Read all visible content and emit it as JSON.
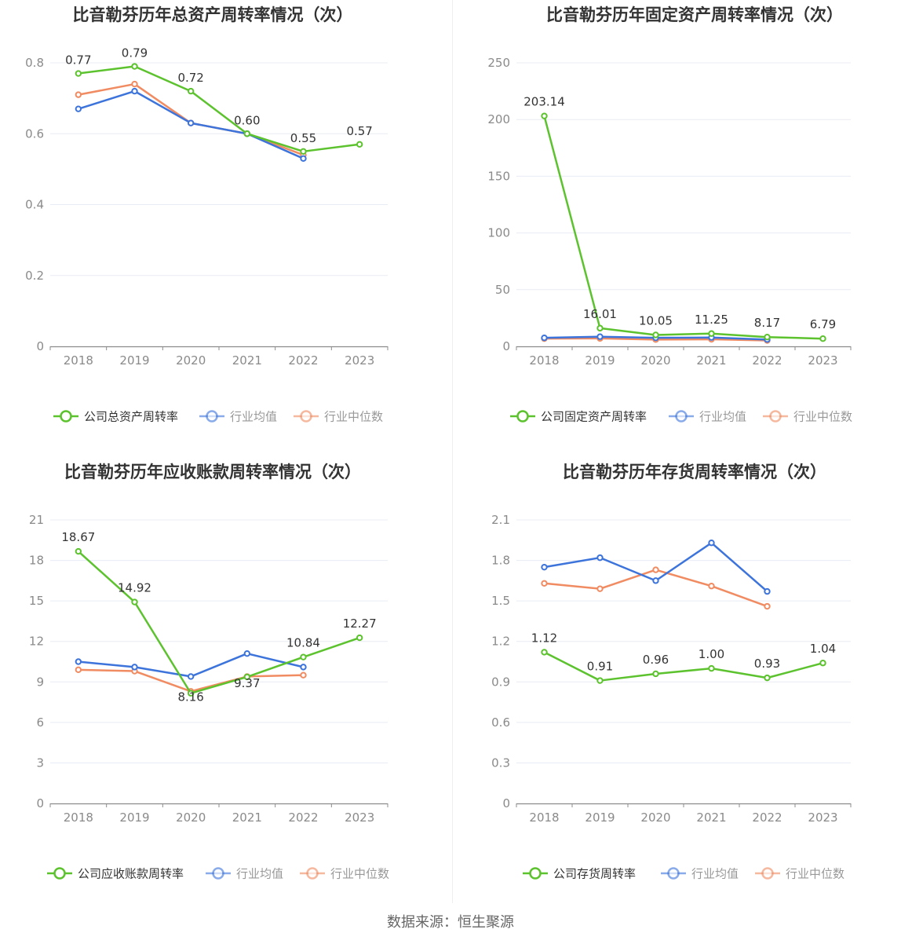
{
  "footer": "数据来源：恒生聚源",
  "colors": {
    "company": "#5cc22e",
    "avg": "#3d74db",
    "median": "#f08b62"
  },
  "chart_data": [
    {
      "type": "line",
      "title": "比音勒芬历年总资产周转率情况（次）",
      "categories": [
        "2018",
        "2019",
        "2020",
        "2021",
        "2022",
        "2023"
      ],
      "ylim": [
        0,
        0.8
      ],
      "yticks": [
        0,
        0.2,
        0.4,
        0.6,
        0.8
      ],
      "ytick_labels": [
        "0",
        "0.2",
        "0.4",
        "0.6",
        "0.8"
      ],
      "grid": true,
      "legend_position": "bottom",
      "series": [
        {
          "name": "公司总资产周转率",
          "values": [
            0.77,
            0.79,
            0.72,
            0.6,
            0.55,
            0.57
          ],
          "labels": [
            "0.77",
            "0.79",
            "0.72",
            "0.60",
            "0.55",
            "0.57"
          ]
        },
        {
          "name": "行业均值",
          "values": [
            0.67,
            0.72,
            0.63,
            0.6,
            0.53,
            null
          ]
        },
        {
          "name": "行业中位数",
          "values": [
            0.71,
            0.74,
            0.63,
            0.6,
            0.54,
            null
          ]
        }
      ]
    },
    {
      "type": "line",
      "title": "比音勒芬历年固定资产周转率情况（次）",
      "categories": [
        "2018",
        "2019",
        "2020",
        "2021",
        "2022",
        "2023"
      ],
      "ylim": [
        0,
        250
      ],
      "yticks": [
        0,
        50,
        100,
        150,
        200,
        250
      ],
      "ytick_labels": [
        "0",
        "50",
        "100",
        "150",
        "200",
        "250"
      ],
      "grid": true,
      "legend_position": "bottom",
      "series": [
        {
          "name": "公司固定资产周转率",
          "values": [
            203.14,
            16.01,
            10.05,
            11.25,
            8.17,
            6.79
          ],
          "labels": [
            "203.14",
            "16.01",
            "10.05",
            "11.25",
            "8.17",
            "6.79"
          ]
        },
        {
          "name": "行业均值",
          "values": [
            7.5,
            8.5,
            7.5,
            7.8,
            6.0,
            null
          ]
        },
        {
          "name": "行业中位数",
          "values": [
            6.8,
            7.0,
            6.0,
            6.2,
            5.2,
            null
          ]
        }
      ]
    },
    {
      "type": "line",
      "title": "比音勒芬历年应收账款周转率情况（次）",
      "categories": [
        "2018",
        "2019",
        "2020",
        "2021",
        "2022",
        "2023"
      ],
      "ylim": [
        0,
        21
      ],
      "yticks": [
        0,
        3,
        6,
        9,
        12,
        15,
        18,
        21
      ],
      "ytick_labels": [
        "0",
        "3",
        "6",
        "9",
        "12",
        "15",
        "18",
        "21"
      ],
      "grid": true,
      "legend_position": "bottom",
      "series": [
        {
          "name": "公司应收账款周转率",
          "values": [
            18.67,
            14.92,
            8.16,
            9.37,
            10.84,
            12.27
          ],
          "labels": [
            "18.67",
            "14.92",
            "8.16",
            "9.37",
            "10.84",
            "12.27"
          ]
        },
        {
          "name": "行业均值",
          "values": [
            10.5,
            10.1,
            9.4,
            11.1,
            10.1,
            null
          ]
        },
        {
          "name": "行业中位数",
          "values": [
            9.9,
            9.8,
            8.3,
            9.4,
            9.5,
            null
          ]
        }
      ]
    },
    {
      "type": "line",
      "title": "比音勒芬历年存货周转率情况（次）",
      "categories": [
        "2018",
        "2019",
        "2020",
        "2021",
        "2022",
        "2023"
      ],
      "ylim": [
        0,
        2.1
      ],
      "yticks": [
        0,
        0.3,
        0.6,
        0.9,
        1.2,
        1.5,
        1.8,
        2.1
      ],
      "ytick_labels": [
        "0",
        "0.3",
        "0.6",
        "0.9",
        "1.2",
        "1.5",
        "1.8",
        "2.1"
      ],
      "grid": true,
      "legend_position": "bottom",
      "series": [
        {
          "name": "公司存货周转率",
          "values": [
            1.12,
            0.91,
            0.96,
            1.0,
            0.93,
            1.04
          ],
          "labels": [
            "1.12",
            "0.91",
            "0.96",
            "1.00",
            "0.93",
            "1.04"
          ]
        },
        {
          "name": "行业均值",
          "values": [
            1.75,
            1.82,
            1.65,
            1.93,
            1.57,
            null
          ]
        },
        {
          "name": "行业中位数",
          "values": [
            1.63,
            1.59,
            1.73,
            1.61,
            1.46,
            null
          ]
        }
      ]
    }
  ]
}
